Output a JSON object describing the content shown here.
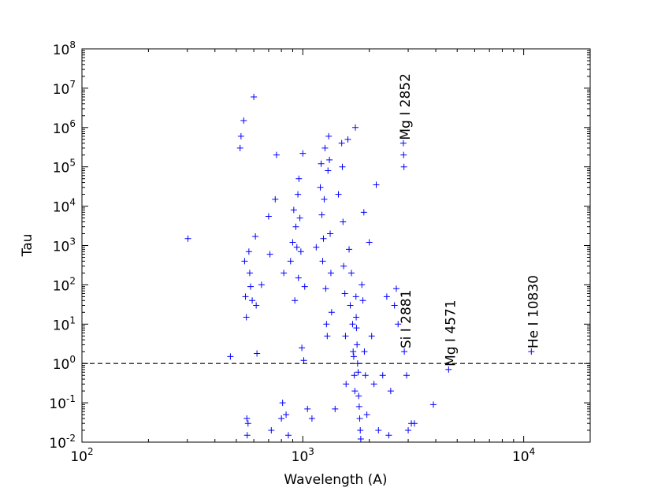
{
  "chart_data": {
    "type": "scatter",
    "title": "",
    "xlabel": "Wavelength (A)",
    "ylabel": "Tau",
    "xscale": "log",
    "yscale": "log",
    "xlim": [
      100,
      20000
    ],
    "ylim": [
      0.01,
      100000000
    ],
    "grid": false,
    "marker": "+",
    "color": "#0000ff",
    "reference_line": {
      "y": 1,
      "style": "dashed",
      "color": "#000000"
    },
    "x_ticks": [
      {
        "base": "10",
        "exp": "2"
      },
      {
        "base": "10",
        "exp": "3"
      },
      {
        "base": "10",
        "exp": "4"
      }
    ],
    "y_ticks": [
      {
        "base": "10",
        "exp": "-2"
      },
      {
        "base": "10",
        "exp": "-1"
      },
      {
        "base": "10",
        "exp": "0"
      },
      {
        "base": "10",
        "exp": "1"
      },
      {
        "base": "10",
        "exp": "2"
      },
      {
        "base": "10",
        "exp": "3"
      },
      {
        "base": "10",
        "exp": "4"
      },
      {
        "base": "10",
        "exp": "5"
      },
      {
        "base": "10",
        "exp": "6"
      },
      {
        "base": "10",
        "exp": "7"
      },
      {
        "base": "10",
        "exp": "8"
      }
    ],
    "annotations": [
      {
        "text": "Mg I 2852",
        "x": 2852,
        "y": 400000
      },
      {
        "text": "Si I 2881",
        "x": 2881,
        "y": 2
      },
      {
        "text": "Mg I 4571",
        "x": 4571,
        "y": 0.7
      },
      {
        "text": "He I 10830",
        "x": 10830,
        "y": 2
      }
    ],
    "points": [
      [
        302,
        1500
      ],
      [
        470,
        1.5
      ],
      [
        520,
        300000
      ],
      [
        525,
        600000
      ],
      [
        540,
        1500000
      ],
      [
        545,
        400
      ],
      [
        550,
        50
      ],
      [
        555,
        15
      ],
      [
        558,
        0.04
      ],
      [
        560,
        0.015
      ],
      [
        565,
        0.03
      ],
      [
        570,
        700
      ],
      [
        575,
        200
      ],
      [
        580,
        90
      ],
      [
        590,
        40
      ],
      [
        600,
        6000000
      ],
      [
        610,
        1700
      ],
      [
        615,
        30
      ],
      [
        620,
        1.8
      ],
      [
        650,
        100
      ],
      [
        700,
        5500
      ],
      [
        710,
        600
      ],
      [
        720,
        0.02
      ],
      [
        750,
        15000
      ],
      [
        760,
        200000
      ],
      [
        800,
        0.04
      ],
      [
        810,
        0.1
      ],
      [
        820,
        200
      ],
      [
        840,
        0.05
      ],
      [
        860,
        0.015
      ],
      [
        880,
        400
      ],
      [
        900,
        1200
      ],
      [
        910,
        8000
      ],
      [
        920,
        40
      ],
      [
        930,
        3000
      ],
      [
        940,
        900
      ],
      [
        950,
        20000
      ],
      [
        955,
        150
      ],
      [
        960,
        50000
      ],
      [
        970,
        5000
      ],
      [
        980,
        700
      ],
      [
        990,
        2.5
      ],
      [
        1000,
        220000
      ],
      [
        1010,
        1.2
      ],
      [
        1020,
        90
      ],
      [
        1050,
        0.07
      ],
      [
        1100,
        0.04
      ],
      [
        1150,
        900
      ],
      [
        1200,
        30000
      ],
      [
        1210,
        120000
      ],
      [
        1220,
        6000
      ],
      [
        1230,
        400
      ],
      [
        1240,
        1500
      ],
      [
        1250,
        15000
      ],
      [
        1260,
        300000
      ],
      [
        1270,
        80
      ],
      [
        1280,
        10
      ],
      [
        1290,
        5
      ],
      [
        1300,
        80000
      ],
      [
        1310,
        600000
      ],
      [
        1320,
        150000
      ],
      [
        1330,
        2000
      ],
      [
        1340,
        200
      ],
      [
        1350,
        20
      ],
      [
        1400,
        0.07
      ],
      [
        1450,
        20000
      ],
      [
        1500,
        400000
      ],
      [
        1510,
        100000
      ],
      [
        1520,
        4000
      ],
      [
        1530,
        300
      ],
      [
        1550,
        60
      ],
      [
        1560,
        5
      ],
      [
        1570,
        0.3
      ],
      [
        1600,
        500000
      ],
      [
        1620,
        800
      ],
      [
        1640,
        30
      ],
      [
        1660,
        200
      ],
      [
        1680,
        10
      ],
      [
        1690,
        2
      ],
      [
        1700,
        1.5
      ],
      [
        1710,
        0.5
      ],
      [
        1720,
        0.2
      ],
      [
        1730,
        1000000
      ],
      [
        1740,
        50
      ],
      [
        1745,
        15
      ],
      [
        1750,
        8
      ],
      [
        1760,
        3
      ],
      [
        1770,
        1
      ],
      [
        1780,
        0.6
      ],
      [
        1790,
        0.15
      ],
      [
        1800,
        0.08
      ],
      [
        1810,
        0.04
      ],
      [
        1820,
        0.02
      ],
      [
        1830,
        0.012
      ],
      [
        1850,
        100
      ],
      [
        1870,
        40
      ],
      [
        1890,
        7000
      ],
      [
        1900,
        2
      ],
      [
        1920,
        0.5
      ],
      [
        1950,
        0.05
      ],
      [
        2000,
        1200
      ],
      [
        2050,
        5
      ],
      [
        2100,
        0.3
      ],
      [
        2150,
        35000
      ],
      [
        2200,
        0.02
      ],
      [
        2300,
        0.5
      ],
      [
        2400,
        50
      ],
      [
        2450,
        0.015
      ],
      [
        2500,
        0.2
      ],
      [
        2600,
        30
      ],
      [
        2650,
        80
      ],
      [
        2700,
        10
      ],
      [
        2852,
        400000
      ],
      [
        2860,
        200000
      ],
      [
        2870,
        100000
      ],
      [
        2881,
        2
      ],
      [
        2950,
        0.5
      ],
      [
        3000,
        0.02
      ],
      [
        3100,
        0.03
      ],
      [
        3200,
        0.03
      ],
      [
        3900,
        0.09
      ],
      [
        4571,
        0.7
      ],
      [
        10830,
        2
      ]
    ]
  }
}
